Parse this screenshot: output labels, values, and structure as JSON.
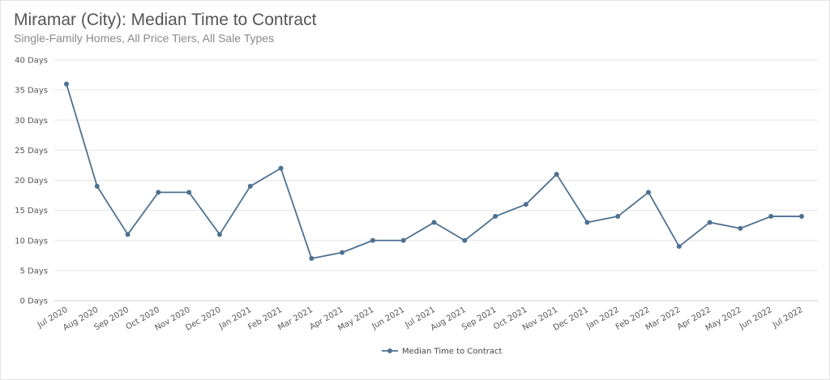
{
  "title": "Miramar (City): Median Time to Contract",
  "subtitle": "Single-Family Homes, All Price Tiers, All Sale Types",
  "colors": {
    "series": "#4e7191",
    "grid": "#e6e6e6",
    "axis": "#cccccc"
  },
  "chart_data": {
    "type": "line",
    "categories": [
      "Jul 2020",
      "Aug 2020",
      "Sep 2020",
      "Oct 2020",
      "Nov 2020",
      "Dec 2020",
      "Jan 2021",
      "Feb 2021",
      "Mar 2021",
      "Apr 2021",
      "May 2021",
      "Jun 2021",
      "Jul 2021",
      "Aug 2021",
      "Sep 2021",
      "Oct 2021",
      "Nov 2021",
      "Dec 2021",
      "Jan 2022",
      "Feb 2022",
      "Mar 2022",
      "Apr 2022",
      "May 2022",
      "Jun 2022",
      "Jul 2022"
    ],
    "series": [
      {
        "name": "Median Time to Contract",
        "values": [
          36,
          19,
          11,
          18,
          18,
          11,
          19,
          22,
          7,
          8,
          10,
          10,
          13,
          10,
          14,
          16,
          21,
          13,
          14,
          18,
          9,
          13,
          12,
          14,
          14
        ]
      }
    ],
    "ylim": [
      0,
      40
    ],
    "yticks": [
      0,
      5,
      10,
      15,
      20,
      25,
      30,
      35,
      40
    ],
    "ytick_labels": [
      "0 Days",
      "5 Days",
      "10 Days",
      "15 Days",
      "20 Days",
      "25 Days",
      "30 Days",
      "35 Days",
      "40 Days"
    ],
    "grid": true,
    "legend": "bottom-center"
  }
}
